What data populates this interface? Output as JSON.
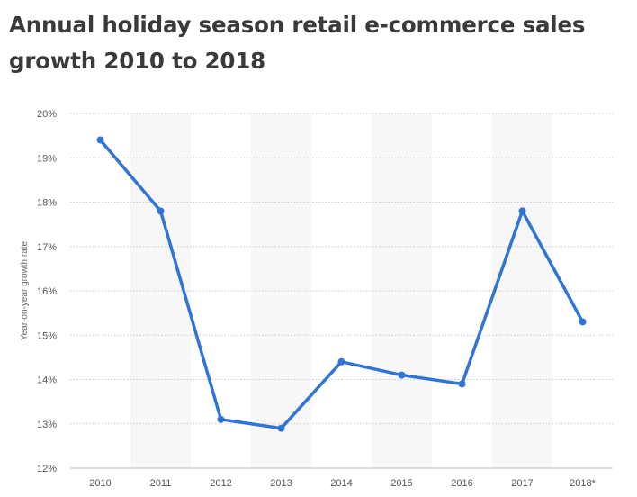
{
  "chart_data": {
    "type": "line",
    "title": "Annual holiday season retail e-commerce sales growth 2010 to 2018",
    "xlabel": "",
    "ylabel": "Year-on-year growth rate",
    "categories": [
      "2010",
      "2011",
      "2012",
      "2013",
      "2014",
      "2015",
      "2016",
      "2017",
      "2018*"
    ],
    "series": [
      {
        "values": [
          19.4,
          17.8,
          13.1,
          12.9,
          14.4,
          14.1,
          13.9,
          17.8,
          15.3
        ]
      }
    ],
    "ylim": [
      12,
      20
    ],
    "yticks": [
      12,
      13,
      14,
      15,
      16,
      17,
      18,
      19,
      20
    ],
    "ytick_suffix": "%",
    "grid": true,
    "line_color": "#2f74d6",
    "band_color": "#f7f7f7",
    "grid_color": "#c8c8c8"
  }
}
